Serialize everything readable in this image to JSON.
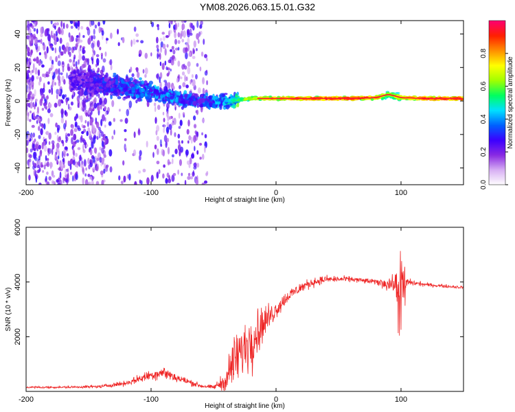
{
  "title": "YM08.2026.063.15.01.G32",
  "chart_data": [
    {
      "type": "heatmap",
      "description": "spectrogram",
      "xlabel": "Height of straight line (km)",
      "ylabel": "Frequency (Hz)",
      "xlim": [
        -200,
        150
      ],
      "ylim": [
        -50,
        48
      ],
      "xticks": [
        -200,
        -100,
        0,
        100
      ],
      "xtick_labels": [
        "-200",
        "-100",
        "0",
        "100"
      ],
      "yticks": [
        -40,
        -20,
        0,
        20,
        40
      ],
      "ytick_labels": [
        "-40",
        "-20",
        "0",
        "20",
        "40"
      ],
      "colorbar": {
        "label": "Normalized spectral amplitude",
        "range": [
          0,
          1
        ],
        "ticks": [
          0.0,
          0.2,
          0.4,
          0.6,
          0.8
        ],
        "tick_labels": [
          "0.0",
          "0.2",
          "0.4",
          "0.6",
          "0.8"
        ],
        "colormap": [
          "#ffffff",
          "#d8b0f4",
          "#8a2be2",
          "#3c00ff",
          "#0060ff",
          "#00e0ff",
          "#00ff60",
          "#a0ff00",
          "#ffff00",
          "#ff9000",
          "#ff2000",
          "#ff0070"
        ]
      },
      "ridge": {
        "x": [
          -160,
          -140,
          -120,
          -100,
          -80,
          -60,
          -40,
          -20,
          0,
          20,
          40,
          60,
          80,
          90,
          100,
          120,
          150
        ],
        "frequency": [
          12,
          10,
          8,
          5,
          2,
          0,
          0,
          1.5,
          1.5,
          1.5,
          1.5,
          1.5,
          2,
          4,
          2,
          1.5,
          1.5
        ],
        "amplitude": [
          0.25,
          0.3,
          0.35,
          0.4,
          0.4,
          0.35,
          0.45,
          0.7,
          0.8,
          0.85,
          0.9,
          0.9,
          0.85,
          0.6,
          0.75,
          0.9,
          0.9
        ]
      },
      "grid": false,
      "legend": "colorbar-right"
    },
    {
      "type": "line",
      "xlabel": "Height of straight line (km)",
      "ylabel": "SNR (10 * v/v)",
      "xlim": [
        -200,
        150
      ],
      "ylim": [
        0,
        6000
      ],
      "xticks": [
        -200,
        -100,
        0,
        100
      ],
      "xtick_labels": [
        "-200",
        "-100",
        "0",
        "100"
      ],
      "yticks": [
        2000,
        4000,
        6000
      ],
      "ytick_labels": [
        "2000",
        "4000",
        "6000"
      ],
      "color": "#ee2222",
      "grid": false,
      "envelope": {
        "x": [
          -200,
          -170,
          -140,
          -120,
          -100,
          -90,
          -80,
          -60,
          -50,
          -40,
          -35,
          -25,
          -20,
          -10,
          0,
          10,
          20,
          30,
          40,
          60,
          80,
          95,
          100,
          105,
          120,
          150
        ],
        "mean": [
          150,
          150,
          180,
          300,
          600,
          700,
          500,
          200,
          150,
          400,
          1000,
          1600,
          1900,
          2500,
          3000,
          3500,
          3800,
          4000,
          4100,
          4100,
          4000,
          3900,
          3500,
          4000,
          3900,
          3800
        ],
        "amplitude": [
          60,
          60,
          80,
          140,
          300,
          350,
          250,
          120,
          100,
          600,
          1400,
          1500,
          1700,
          900,
          500,
          350,
          300,
          250,
          200,
          150,
          150,
          500,
          3000,
          200,
          100,
          80
        ]
      }
    }
  ]
}
